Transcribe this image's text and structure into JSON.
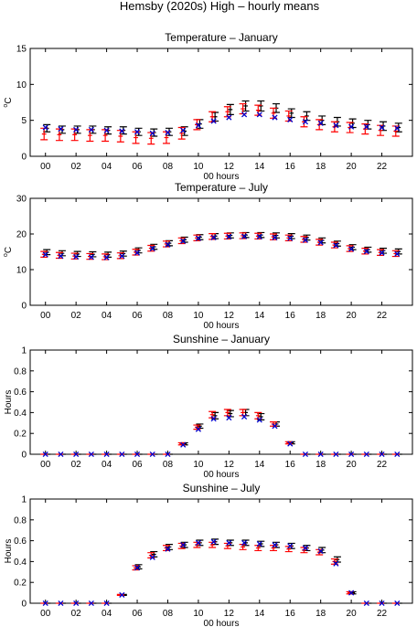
{
  "figure_title": "Hemsby (2020s) High – hourly means",
  "chart_data": [
    {
      "type": "scatter",
      "title": "Temperature – January",
      "xlabel": "00 hours",
      "ylabel_base": "C",
      "ylabel_sup": "o",
      "x": [
        0,
        1,
        2,
        3,
        4,
        5,
        6,
        7,
        8,
        9,
        10,
        11,
        12,
        13,
        14,
        15,
        16,
        17,
        18,
        19,
        20,
        21,
        22,
        23
      ],
      "xticks": [
        "00",
        "02",
        "04",
        "06",
        "08",
        "10",
        "12",
        "14",
        "16",
        "18",
        "20",
        "22"
      ],
      "ylim": [
        0,
        15
      ],
      "yticks": [
        "0",
        "5",
        "10",
        "15"
      ],
      "series": [
        {
          "color": "#000000",
          "marker": "errorbar",
          "values": [
            3.9,
            3.7,
            3.7,
            3.7,
            3.6,
            3.6,
            3.4,
            3.3,
            3.4,
            3.5,
            4.5,
            5.5,
            6.5,
            7.0,
            7.0,
            6.7,
            6.0,
            5.6,
            5.0,
            4.8,
            4.6,
            4.4,
            4.2,
            4.0
          ],
          "errors": [
            0.5,
            0.5,
            0.5,
            0.5,
            0.5,
            0.5,
            0.5,
            0.5,
            0.5,
            0.6,
            0.6,
            0.6,
            0.7,
            0.7,
            0.7,
            0.6,
            0.6,
            0.6,
            0.6,
            0.6,
            0.6,
            0.6,
            0.6,
            0.6
          ]
        },
        {
          "color": "#ff0000",
          "marker": "errorbar",
          "values": [
            3.1,
            3.0,
            3.0,
            2.9,
            2.9,
            2.8,
            2.6,
            2.5,
            2.6,
            3.2,
            4.4,
            5.5,
            6.2,
            6.6,
            6.4,
            6.0,
            5.6,
            4.8,
            4.4,
            4.1,
            4.0,
            3.8,
            3.6,
            3.5
          ],
          "errors": [
            0.8,
            0.8,
            0.8,
            0.8,
            0.8,
            0.8,
            0.8,
            0.8,
            0.8,
            0.8,
            0.7,
            0.7,
            0.7,
            0.7,
            0.7,
            0.7,
            0.7,
            0.7,
            0.7,
            0.7,
            0.7,
            0.7,
            0.7,
            0.7
          ]
        },
        {
          "color": "#0000cc",
          "marker": "x",
          "values": [
            4.0,
            3.8,
            3.7,
            3.7,
            3.6,
            3.5,
            3.4,
            3.2,
            3.3,
            3.6,
            4.3,
            4.9,
            5.4,
            5.8,
            5.8,
            5.4,
            5.1,
            4.8,
            4.6,
            4.3,
            4.1,
            4.1,
            4.0,
            3.9
          ]
        }
      ]
    },
    {
      "type": "scatter",
      "title": "Temperature – July",
      "xlabel": "00 hours",
      "ylabel_base": "C",
      "ylabel_sup": "o",
      "x": [
        0,
        1,
        2,
        3,
        4,
        5,
        6,
        7,
        8,
        9,
        10,
        11,
        12,
        13,
        14,
        15,
        16,
        17,
        18,
        19,
        20,
        21,
        22,
        23
      ],
      "xticks": [
        "00",
        "02",
        "04",
        "06",
        "08",
        "10",
        "12",
        "14",
        "16",
        "18",
        "20",
        "22"
      ],
      "ylim": [
        0,
        30
      ],
      "yticks": [
        "0",
        "10",
        "20",
        "30"
      ],
      "series": [
        {
          "color": "#000000",
          "marker": "errorbar",
          "values": [
            14.9,
            14.6,
            14.4,
            14.3,
            14.2,
            14.5,
            15.4,
            16.4,
            17.4,
            18.4,
            19.1,
            19.4,
            19.6,
            19.7,
            19.7,
            19.6,
            19.4,
            19.0,
            18.2,
            17.3,
            16.3,
            15.6,
            15.3,
            15.1
          ],
          "errors": [
            0.7,
            0.7,
            0.7,
            0.7,
            0.7,
            0.7,
            0.7,
            0.7,
            0.7,
            0.7,
            0.7,
            0.7,
            0.7,
            0.7,
            0.7,
            0.7,
            0.7,
            0.7,
            0.7,
            0.7,
            0.7,
            0.7,
            0.7,
            0.7
          ]
        },
        {
          "color": "#ff0000",
          "marker": "errorbar",
          "values": [
            14.3,
            14.0,
            13.8,
            13.7,
            13.6,
            13.9,
            14.9,
            16.0,
            17.2,
            18.1,
            18.9,
            19.3,
            19.4,
            19.5,
            19.4,
            19.2,
            18.9,
            18.5,
            17.7,
            16.9,
            15.9,
            15.2,
            14.8,
            14.5
          ],
          "errors": [
            0.8,
            0.8,
            0.8,
            0.8,
            0.8,
            0.8,
            0.8,
            0.8,
            0.8,
            0.8,
            0.8,
            0.8,
            0.8,
            0.8,
            0.8,
            0.8,
            0.8,
            0.8,
            0.8,
            0.8,
            0.8,
            0.8,
            0.8,
            0.8
          ]
        },
        {
          "color": "#0000cc",
          "marker": "x",
          "values": [
            14.2,
            13.8,
            13.6,
            13.5,
            13.4,
            13.8,
            14.7,
            15.9,
            17.0,
            18.0,
            18.8,
            19.0,
            19.2,
            19.3,
            19.2,
            19.0,
            18.8,
            18.3,
            17.6,
            16.8,
            15.8,
            15.1,
            14.7,
            14.4
          ]
        }
      ]
    },
    {
      "type": "scatter",
      "title": "Sunshine – January",
      "xlabel": "00 hours",
      "ylabel": "Hours",
      "x": [
        0,
        1,
        2,
        3,
        4,
        5,
        6,
        7,
        8,
        9,
        10,
        11,
        12,
        13,
        14,
        15,
        16,
        17,
        18,
        19,
        20,
        21,
        22,
        23
      ],
      "xticks": [
        "00",
        "02",
        "04",
        "06",
        "08",
        "10",
        "12",
        "14",
        "16",
        "18",
        "20",
        "22"
      ],
      "ylim": [
        0,
        1
      ],
      "yticks": [
        "0",
        "0.2",
        "0.4",
        "0.6",
        "0.8",
        "1"
      ],
      "series": [
        {
          "color": "#000000",
          "marker": "errorbar",
          "values": [
            0,
            0,
            0,
            0,
            0,
            0,
            0,
            0,
            0,
            0.1,
            0.27,
            0.37,
            0.39,
            0.4,
            0.36,
            0.29,
            0.11,
            0,
            0,
            0,
            0,
            0,
            0,
            0
          ],
          "errors": [
            0,
            0,
            0,
            0,
            0,
            0,
            0,
            0,
            0,
            0.01,
            0.02,
            0.03,
            0.03,
            0.03,
            0.03,
            0.02,
            0.01,
            0,
            0,
            0,
            0,
            0,
            0,
            0
          ]
        },
        {
          "color": "#ff0000",
          "marker": "errorbar",
          "values": [
            0,
            0,
            0,
            0,
            0,
            0,
            0,
            0,
            0,
            0.1,
            0.26,
            0.38,
            0.4,
            0.4,
            0.37,
            0.29,
            0.11,
            0,
            0,
            0,
            0,
            0,
            0,
            0
          ],
          "errors": [
            0,
            0,
            0,
            0,
            0,
            0,
            0,
            0,
            0,
            0.01,
            0.02,
            0.03,
            0.03,
            0.03,
            0.03,
            0.02,
            0.01,
            0,
            0,
            0,
            0,
            0,
            0,
            0
          ]
        },
        {
          "color": "#0000cc",
          "marker": "x",
          "values": [
            0,
            0,
            0,
            0,
            0,
            0,
            0,
            0,
            0,
            0.09,
            0.24,
            0.34,
            0.35,
            0.36,
            0.33,
            0.27,
            0.1,
            0,
            0,
            0,
            0,
            0,
            0,
            0
          ]
        }
      ]
    },
    {
      "type": "scatter",
      "title": "Sunshine – July",
      "xlabel": "00 hours",
      "ylabel": "Hours",
      "x": [
        0,
        1,
        2,
        3,
        4,
        5,
        6,
        7,
        8,
        9,
        10,
        11,
        12,
        13,
        14,
        15,
        16,
        17,
        18,
        19,
        20,
        21,
        22,
        23
      ],
      "xticks": [
        "00",
        "02",
        "04",
        "06",
        "08",
        "10",
        "12",
        "14",
        "16",
        "18",
        "20",
        "22"
      ],
      "ylim": [
        0,
        1
      ],
      "yticks": [
        "0",
        "0.2",
        "0.4",
        "0.6",
        "0.8",
        "1"
      ],
      "series": [
        {
          "color": "#000000",
          "marker": "errorbar",
          "values": [
            0,
            0,
            0,
            0,
            0,
            0.08,
            0.35,
            0.47,
            0.54,
            0.56,
            0.58,
            0.59,
            0.58,
            0.58,
            0.57,
            0.56,
            0.55,
            0.53,
            0.51,
            0.42,
            0.1,
            0,
            0,
            0
          ],
          "errors": [
            0,
            0,
            0,
            0,
            0,
            0.005,
            0.02,
            0.025,
            0.025,
            0.025,
            0.025,
            0.025,
            0.025,
            0.025,
            0.025,
            0.025,
            0.025,
            0.025,
            0.025,
            0.025,
            0.01,
            0,
            0,
            0
          ]
        },
        {
          "color": "#ff0000",
          "marker": "errorbar",
          "values": [
            0,
            0,
            0,
            0,
            0,
            0.08,
            0.34,
            0.46,
            0.53,
            0.55,
            0.56,
            0.56,
            0.55,
            0.54,
            0.53,
            0.53,
            0.52,
            0.51,
            0.49,
            0.4,
            0.1,
            0,
            0,
            0
          ],
          "errors": [
            0,
            0,
            0,
            0,
            0,
            0.005,
            0.02,
            0.025,
            0.025,
            0.025,
            0.025,
            0.025,
            0.025,
            0.025,
            0.025,
            0.025,
            0.025,
            0.025,
            0.025,
            0.025,
            0.01,
            0,
            0,
            0
          ]
        },
        {
          "color": "#0000cc",
          "marker": "x",
          "values": [
            0,
            0,
            0,
            0,
            0,
            0.08,
            0.34,
            0.44,
            0.52,
            0.56,
            0.58,
            0.59,
            0.58,
            0.58,
            0.57,
            0.56,
            0.55,
            0.53,
            0.5,
            0.38,
            0.1,
            0,
            0,
            0
          ]
        }
      ]
    }
  ]
}
